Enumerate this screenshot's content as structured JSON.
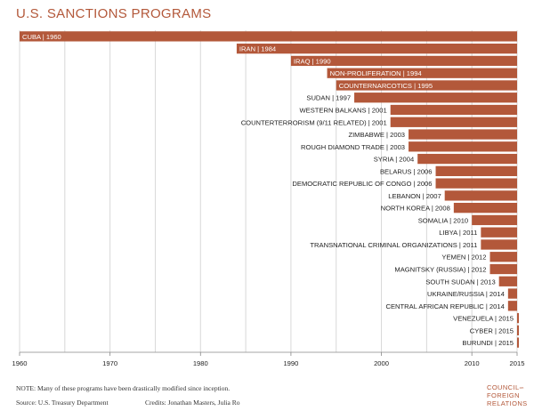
{
  "header": {
    "title": "U.S. SANCTIONS PROGRAMS"
  },
  "colors": {
    "bar": "#b3583a",
    "bar_text_inside": "#ffffff",
    "label": "#222222",
    "grid": "#d8d8d8",
    "axis": "#888888"
  },
  "chart_data": {
    "type": "bar",
    "orientation": "horizontal",
    "title": "U.S. SANCTIONS PROGRAMS",
    "xlabel": "",
    "ylabel": "",
    "xlim": [
      1960,
      2015
    ],
    "x_ticks": [
      1960,
      1970,
      1980,
      1990,
      2000,
      2010,
      2015
    ],
    "grid": true,
    "bars": [
      {
        "label": "CUBA | 1960",
        "start": 1960
      },
      {
        "label": "IRAN | 1984",
        "start": 1984
      },
      {
        "label": "IRAQ | 1990",
        "start": 1990
      },
      {
        "label": "NON-PROLIFERATION | 1994",
        "start": 1994
      },
      {
        "label": "COUNTERNARCOTICS | 1995",
        "start": 1995
      },
      {
        "label": "SUDAN | 1997",
        "start": 1997
      },
      {
        "label": "WESTERN BALKANS | 2001",
        "start": 2001
      },
      {
        "label": "COUNTERTERRORISM (9/11 RELATED) | 2001",
        "start": 2001
      },
      {
        "label": "ZIMBABWE | 2003",
        "start": 2003
      },
      {
        "label": "ROUGH DIAMOND TRADE | 2003",
        "start": 2003
      },
      {
        "label": "SYRIA | 2004",
        "start": 2004
      },
      {
        "label": "BELARUS | 2006",
        "start": 2006
      },
      {
        "label": "DEMOCRATIC REPUBLIC OF CONGO | 2006",
        "start": 2006
      },
      {
        "label": "LEBANON | 2007",
        "start": 2007
      },
      {
        "label": "NORTH KOREA | 2008",
        "start": 2008
      },
      {
        "label": "SOMALIA | 2010",
        "start": 2010
      },
      {
        "label": "LIBYA | 2011",
        "start": 2011
      },
      {
        "label": "TRANSNATIONAL CRIMINAL ORGANIZATIONS | 2011",
        "start": 2011
      },
      {
        "label": "YEMEN | 2012",
        "start": 2012
      },
      {
        "label": "MAGNITSKY (RUSSIA) | 2012",
        "start": 2012
      },
      {
        "label": "SOUTH SUDAN | 2013",
        "start": 2013
      },
      {
        "label": "UKRAINE/RUSSIA | 2014",
        "start": 2014
      },
      {
        "label": "CENTRAL AFRICAN REPUBLIC | 2014",
        "start": 2014
      },
      {
        "label": "VENEZUELA | 2015",
        "start": 2015
      },
      {
        "label": "CYBER | 2015",
        "start": 2015
      },
      {
        "label": "BURUNDI | 2015",
        "start": 2015
      }
    ]
  },
  "footer": {
    "note": "NOTE: Many of these programs have been drastically modified since inception.",
    "source": "Source: U.S. Treasury Department",
    "credits": "Credits: Jonathan Masters, Julia Ro"
  },
  "logo": {
    "line1": "COUNCIL",
    "line1_suffix": "on",
    "line2": "FOREIGN",
    "line3": "RELATIONS"
  }
}
